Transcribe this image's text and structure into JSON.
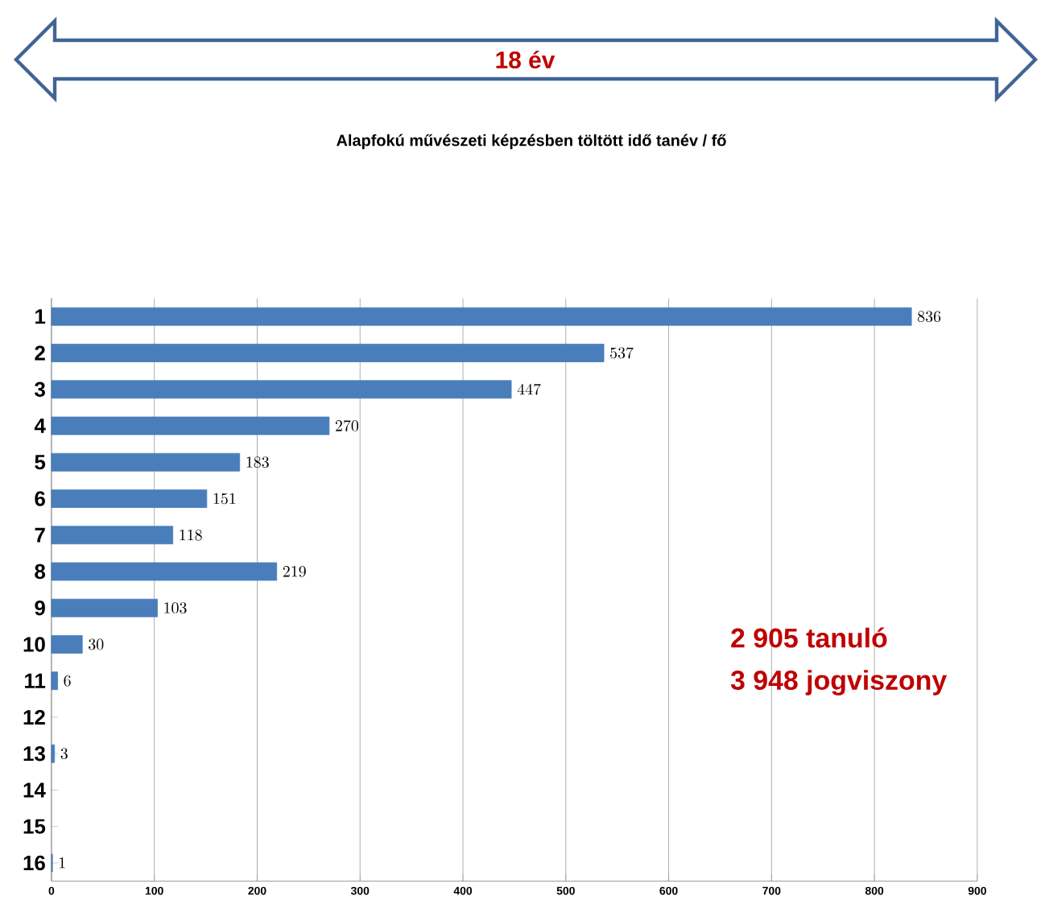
{
  "chart_data": {
    "type": "bar",
    "orientation": "horizontal",
    "title": "Alapfokú művészeti képzésben töltött idő   tanév / fő",
    "categories": [
      "1",
      "2",
      "3",
      "4",
      "5",
      "6",
      "7",
      "8",
      "9",
      "10",
      "11",
      "12",
      "13",
      "14",
      "15",
      "16"
    ],
    "values": [
      836,
      537,
      447,
      270,
      183,
      151,
      118,
      219,
      103,
      30,
      6,
      null,
      3,
      null,
      null,
      1
    ],
    "color": "#4a7ebb",
    "data_labels": true,
    "grid": "x",
    "xlim": [
      0,
      900
    ],
    "xticks": [
      0,
      100,
      200,
      300,
      400,
      500,
      600,
      700,
      800,
      900
    ],
    "annotations": [
      "18 év",
      "2 905 tanuló",
      "3 948 jogviszony"
    ]
  }
}
